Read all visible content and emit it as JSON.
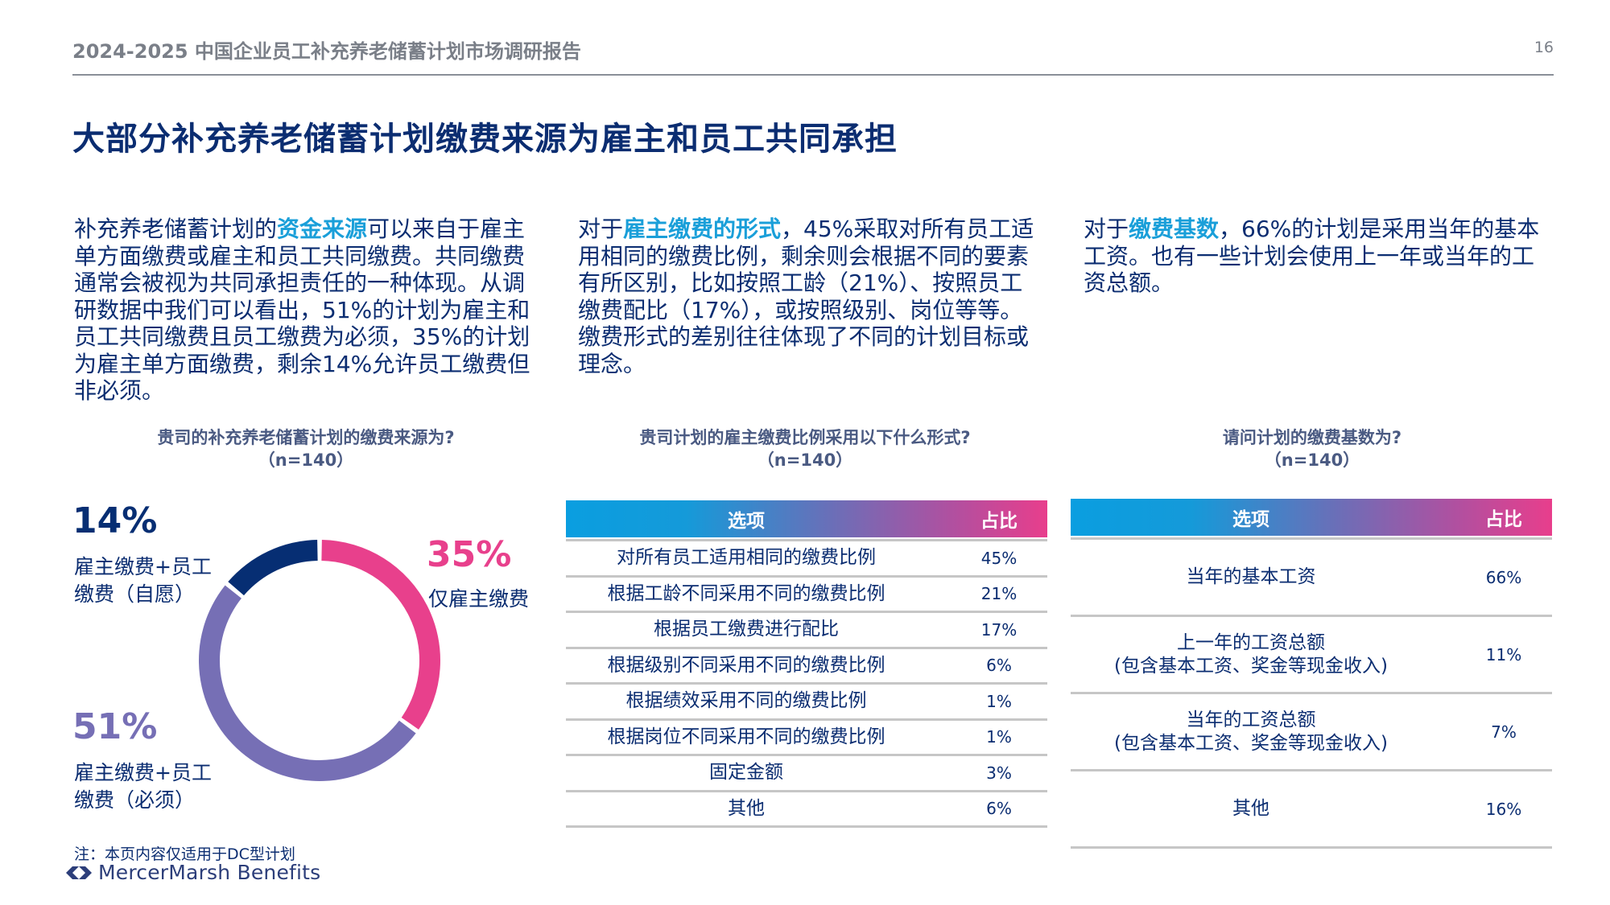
{
  "header": {
    "title": "2024-2025 中国企业员工补充养老储蓄计划市场调研报告",
    "page_number": "16"
  },
  "page_title": "大部分补充养老储蓄计划缴费来源为雇主和员工共同承担",
  "paragraphs": [
    {
      "pre": "补充养老储蓄计划的",
      "highlight": "资金来源",
      "post": "可以来自于雇主单方面缴费或雇主和员工共同缴费。共同缴费通常会被视为共同承担责任的一种体现。从调研数据中我们可以看出，51%的计划为雇主和员工共同缴费且员工缴费为必须，35%的计划为雇主单方面缴费，剩余14%允许员工缴费但非必须。"
    },
    {
      "pre": "对于",
      "highlight": "雇主缴费的形式",
      "post": "，45%采取对所有员工适用相同的缴费比例，剩余则会根据不同的要素有所区别，比如按照工龄（21%）、按照员工缴费配比（17%），或按照级别、岗位等等。缴费形式的差别往往体现了不同的计划目标或理念。"
    },
    {
      "pre": "对于",
      "highlight": "缴费基数",
      "post": "，66%的计划是采用当年的基本工资。也有一些计划会使用上一年或当年的工资总额。"
    }
  ],
  "questions": [
    {
      "title": "贵司的补充养老储蓄计划的缴费来源为?",
      "n": "（n=140）"
    },
    {
      "title": "贵司计划的雇主缴费比例采用以下什么形式?",
      "n": "（n=140）"
    },
    {
      "title": "请问计划的缴费基数为?",
      "n": "（n=140）"
    }
  ],
  "chart_data": [
    {
      "type": "pie",
      "title": "贵司的补充养老储蓄计划的缴费来源为?（n=140）",
      "donut": true,
      "categories": [
        "仅雇主缴费",
        "雇主缴费+员工缴费（必须）",
        "雇主缴费+员工缴费（自愿）"
      ],
      "values": [
        35,
        51,
        14
      ],
      "colors": [
        "#e8408c",
        "#766fb5",
        "#062e73"
      ],
      "labels": [
        {
          "pct": "35%",
          "text": "仅雇主缴费"
        },
        {
          "pct": "51%",
          "text_line1": "雇主缴费+员工",
          "text_line2": "缴费（必须）"
        },
        {
          "pct": "14%",
          "text_line1": "雇主缴费+员工",
          "text_line2": "缴费（自愿）"
        }
      ]
    },
    {
      "type": "table",
      "title": "贵司计划的雇主缴费比例采用以下什么形式?（n=140）",
      "columns": [
        "选项",
        "占比"
      ],
      "rows": [
        [
          "对所有员工适用相同的缴费比例",
          "45%"
        ],
        [
          "根据工龄不同采用不同的缴费比例",
          "21%"
        ],
        [
          "根据员工缴费进行配比",
          "17%"
        ],
        [
          "根据级别不同采用不同的缴费比例",
          "6%"
        ],
        [
          "根据绩效采用不同的缴费比例",
          "1%"
        ],
        [
          "根据岗位不同采用不同的缴费比例",
          "1%"
        ],
        [
          "固定金额",
          "3%"
        ],
        [
          "其他",
          "6%"
        ]
      ]
    },
    {
      "type": "table",
      "title": "请问计划的缴费基数为?（n=140）",
      "columns": [
        "选项",
        "占比"
      ],
      "rows": [
        [
          "当年的基本工资",
          "",
          "66%"
        ],
        [
          "上一年的工资总额",
          "(包含基本工资、奖金等现金收入)",
          "11%"
        ],
        [
          "当年的工资总额",
          "(包含基本工资、奖金等现金收入)",
          "7%"
        ],
        [
          "其他",
          "",
          "16%"
        ]
      ]
    }
  ],
  "table2": {
    "col_option": "选项",
    "col_pct": "占比",
    "rows": [
      {
        "option": "对所有员工适用相同的缴费比例",
        "pct": "45%"
      },
      {
        "option": "根据工龄不同采用不同的缴费比例",
        "pct": "21%"
      },
      {
        "option": "根据员工缴费进行配比",
        "pct": "17%"
      },
      {
        "option": "根据级别不同采用不同的缴费比例",
        "pct": "6%"
      },
      {
        "option": "根据绩效采用不同的缴费比例",
        "pct": "1%"
      },
      {
        "option": "根据岗位不同采用不同的缴费比例",
        "pct": "1%"
      },
      {
        "option": "固定金额",
        "pct": "3%"
      },
      {
        "option": "其他",
        "pct": "6%"
      }
    ]
  },
  "table3": {
    "col_option": "选项",
    "col_pct": "占比",
    "rows": [
      {
        "option": "当年的基本工资",
        "sub": "",
        "pct": "66%"
      },
      {
        "option": "上一年的工资总额",
        "sub": "(包含基本工资、奖金等现金收入)",
        "pct": "11%"
      },
      {
        "option": "当年的工资总额",
        "sub": "(包含基本工资、奖金等现金收入)",
        "pct": "7%"
      },
      {
        "option": "其他",
        "sub": "",
        "pct": "16%"
      }
    ]
  },
  "donut_labels": {
    "employer_only_pct": "35%",
    "employer_only_label": "仅雇主缴费",
    "mandatory_pct": "51%",
    "mandatory_l1": "雇主缴费+员工",
    "mandatory_l2": "缴费（必须）",
    "voluntary_pct": "14%",
    "voluntary_l1": "雇主缴费+员工",
    "voluntary_l2": "缴费（自愿）"
  },
  "colors": {
    "navy": "#0b2d71",
    "accent_blue": "#1a9fd9",
    "pink": "#e8408c",
    "purple": "#766fb5",
    "dark_navy": "#062e73"
  },
  "footer": {
    "note": "注：本页内容仅适用于DC型计划",
    "logo_text": "MercerMarsh Benefits"
  }
}
